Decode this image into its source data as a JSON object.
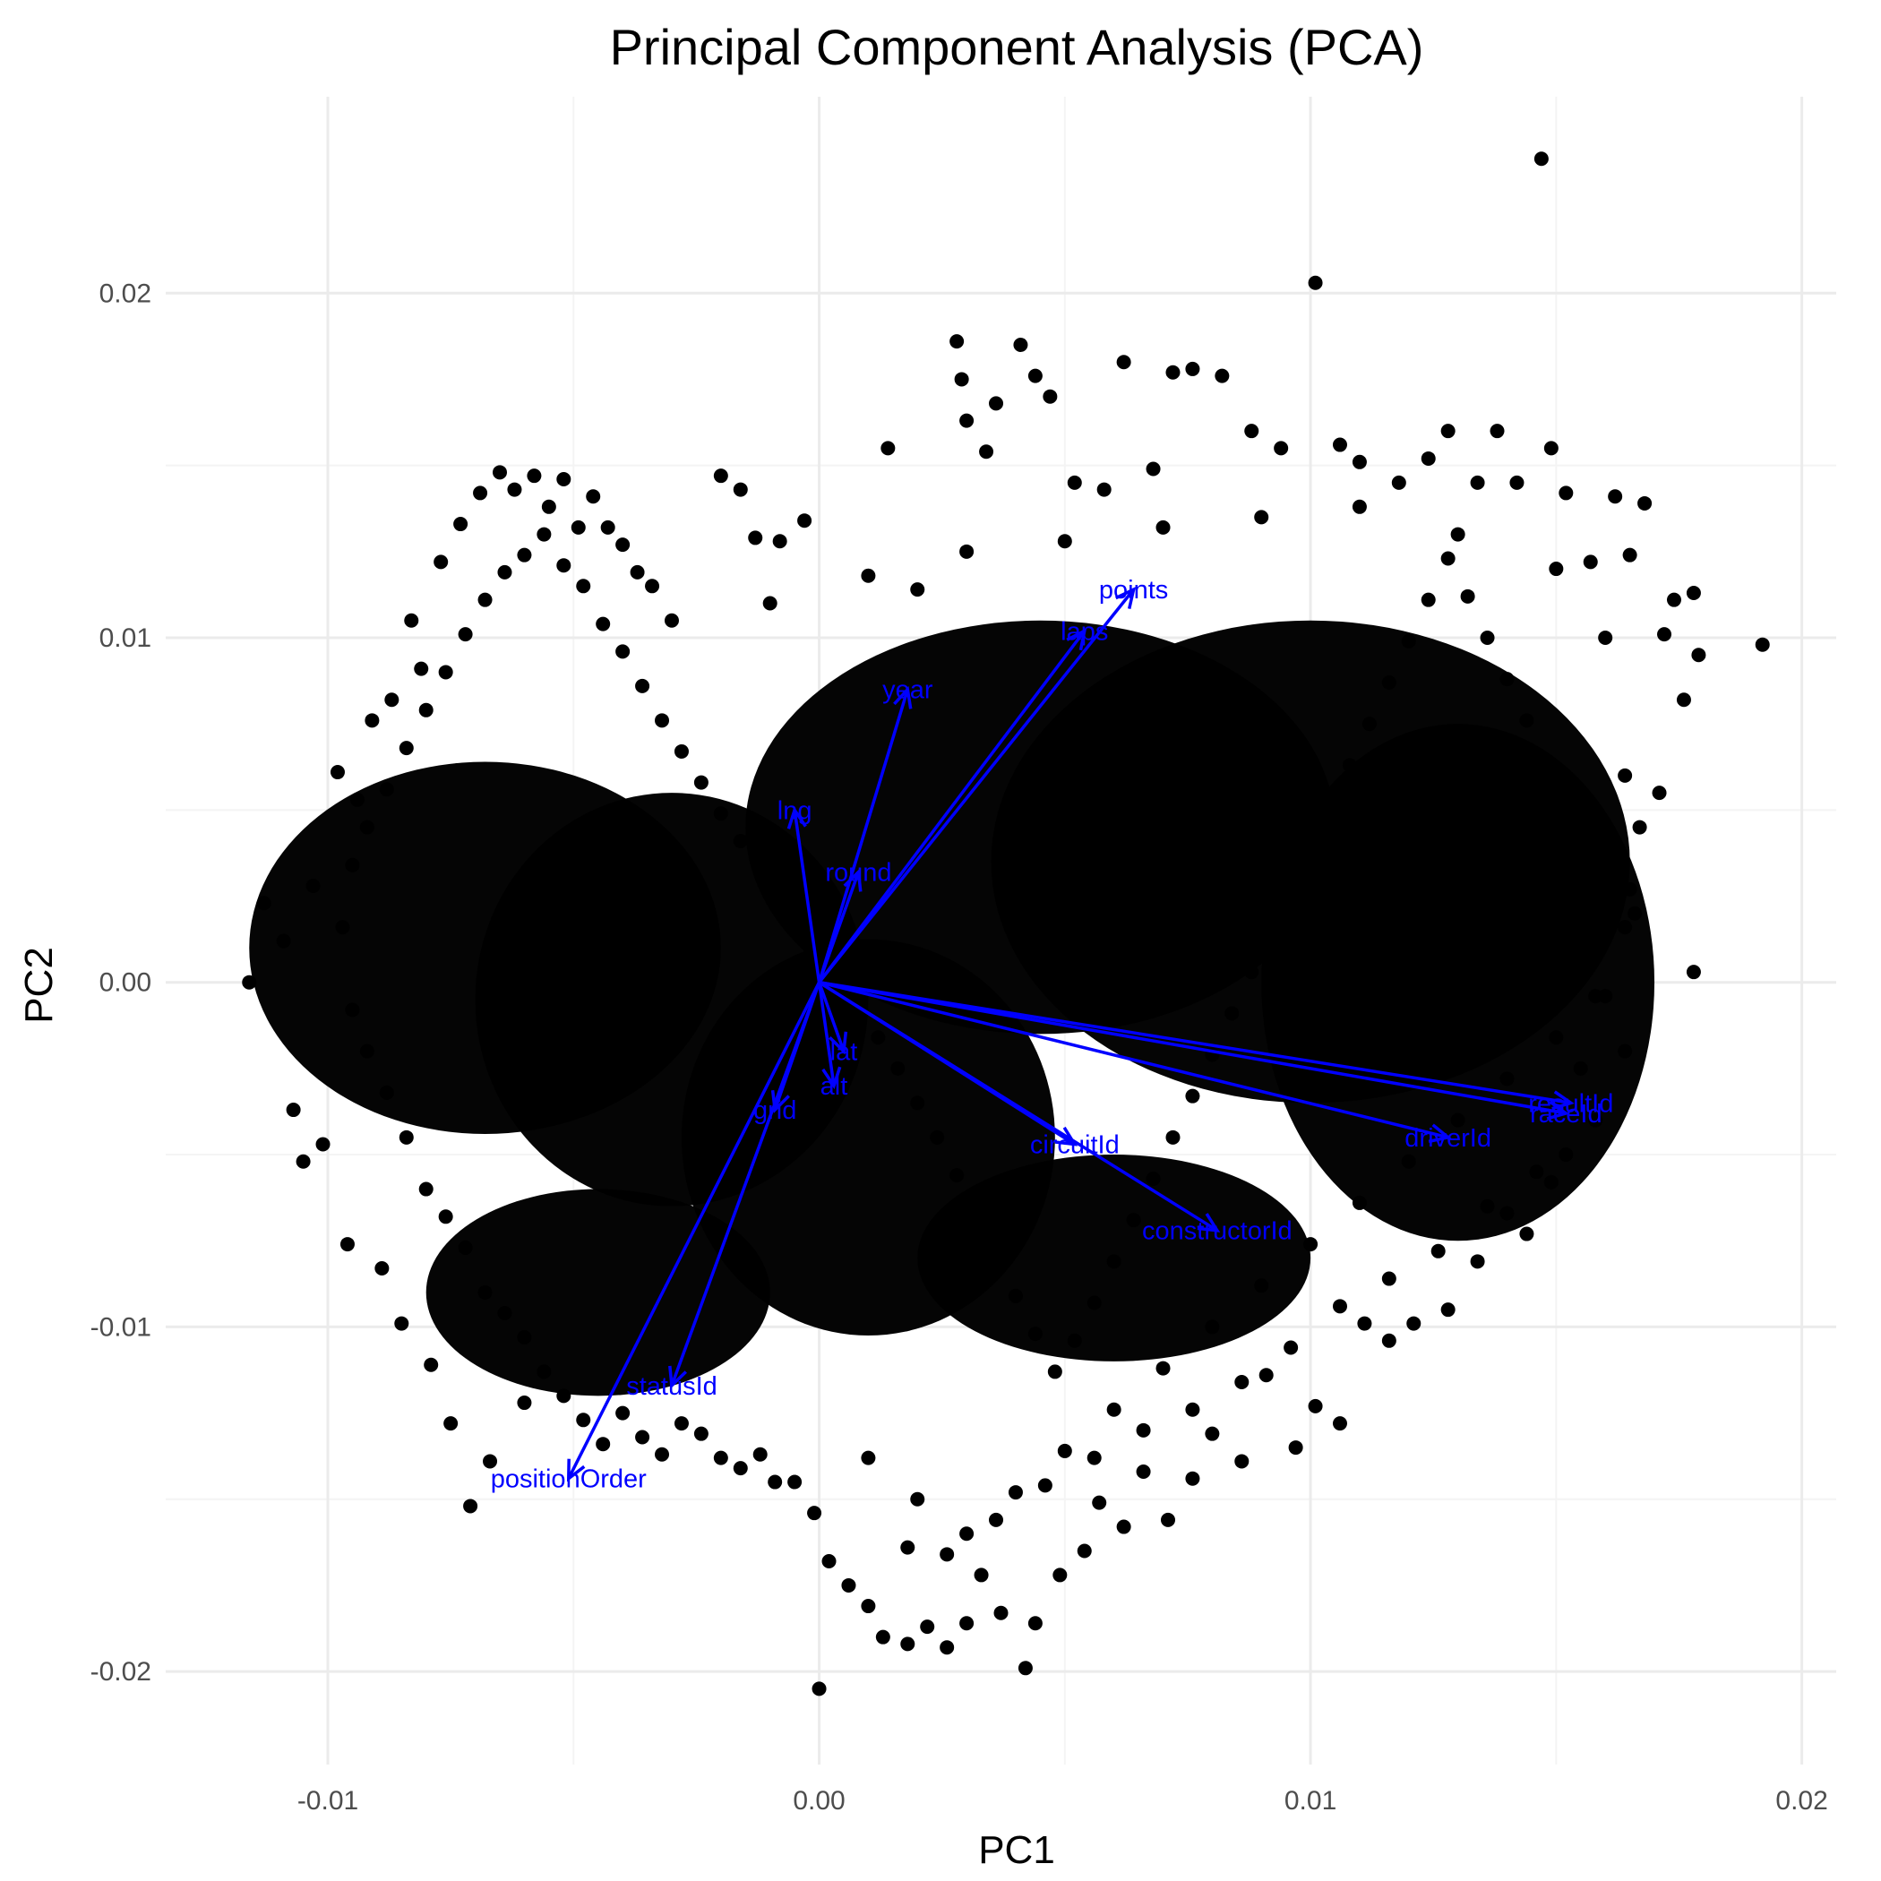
{
  "chart_data": {
    "type": "scatter",
    "title": "Principal Component Analysis (PCA)",
    "xlabel": "PC1",
    "ylabel": "PC2",
    "xlim": [
      -0.0133,
      0.0207
    ],
    "ylim": [
      -0.0227,
      0.0257
    ],
    "x_ticks": [
      {
        "value": -0.01,
        "label": "-0.01"
      },
      {
        "value": 0.0,
        "label": "0.00"
      },
      {
        "value": 0.01,
        "label": "0.01"
      },
      {
        "value": 0.02,
        "label": "0.02"
      }
    ],
    "y_ticks": [
      {
        "value": -0.02,
        "label": "-0.02"
      },
      {
        "value": -0.01,
        "label": "-0.01"
      },
      {
        "value": 0.0,
        "label": "0.00"
      },
      {
        "value": 0.01,
        "label": "0.01"
      },
      {
        "value": 0.02,
        "label": "0.02"
      }
    ],
    "grid": true,
    "point_color": "#000000",
    "arrow_color": "#0000ff",
    "points": [
      [
        -0.0116,
        0.0
      ],
      [
        -0.0113,
        0.0023
      ],
      [
        -0.0109,
        0.0012
      ],
      [
        -0.0107,
        -0.0037
      ],
      [
        -0.0105,
        -0.0052
      ],
      [
        -0.0103,
        0.0028
      ],
      [
        -0.0101,
        -0.0047
      ],
      [
        -0.0098,
        0.0061
      ],
      [
        -0.0096,
        -0.0076
      ],
      [
        -0.0094,
        0.0053
      ],
      [
        -0.0091,
        0.0076
      ],
      [
        -0.0089,
        -0.0083
      ],
      [
        -0.0087,
        0.0082
      ],
      [
        -0.0085,
        -0.0099
      ],
      [
        -0.0083,
        0.0105
      ],
      [
        -0.0081,
        0.0091
      ],
      [
        -0.0079,
        -0.0111
      ],
      [
        -0.0077,
        0.0122
      ],
      [
        -0.0075,
        -0.0128
      ],
      [
        -0.0073,
        0.0133
      ],
      [
        -0.0071,
        -0.0152
      ],
      [
        -0.0069,
        0.0142
      ],
      [
        -0.0067,
        -0.0139
      ],
      [
        -0.0065,
        0.0148
      ],
      [
        -0.0062,
        0.0143
      ],
      [
        -0.006,
        -0.0122
      ],
      [
        -0.0058,
        0.0147
      ],
      [
        -0.0055,
        0.0138
      ],
      [
        -0.0052,
        0.0146
      ],
      [
        -0.0049,
        0.0132
      ],
      [
        -0.0046,
        0.0141
      ],
      [
        -0.0043,
        0.0132
      ],
      [
        -0.004,
        0.0127
      ],
      [
        -0.0037,
        0.0119
      ],
      [
        -0.0034,
        0.0115
      ],
      [
        -0.002,
        0.0147
      ],
      [
        -0.0016,
        0.0143
      ],
      [
        -0.0013,
        0.0129
      ],
      [
        -0.0008,
        0.0128
      ],
      [
        -0.0003,
        0.0134
      ],
      [
        0.0014,
        0.0155
      ],
      [
        0.002,
        0.0114
      ],
      [
        0.0028,
        0.0186
      ],
      [
        0.0029,
        0.0175
      ],
      [
        0.003,
        0.0163
      ],
      [
        0.0034,
        0.0154
      ],
      [
        0.0036,
        0.0168
      ],
      [
        0.0041,
        0.0185
      ],
      [
        0.0044,
        0.0176
      ],
      [
        0.0047,
        0.017
      ],
      [
        0.0052,
        0.0145
      ],
      [
        0.0058,
        0.0143
      ],
      [
        0.0062,
        0.018
      ],
      [
        0.0068,
        0.0149
      ],
      [
        0.0072,
        0.0177
      ],
      [
        0.0076,
        0.0178
      ],
      [
        0.0082,
        0.0176
      ],
      [
        0.0088,
        0.016
      ],
      [
        0.0094,
        0.0155
      ],
      [
        0.0101,
        0.0203
      ],
      [
        0.0106,
        0.0156
      ],
      [
        0.011,
        0.0151
      ],
      [
        0.0118,
        0.0145
      ],
      [
        0.0124,
        0.0152
      ],
      [
        0.0128,
        0.016
      ],
      [
        0.0134,
        0.0145
      ],
      [
        0.0138,
        0.016
      ],
      [
        0.0142,
        0.0145
      ],
      [
        0.0147,
        0.0239
      ],
      [
        0.0149,
        0.0155
      ],
      [
        0.0152,
        0.0142
      ],
      [
        0.0157,
        0.0122
      ],
      [
        0.0162,
        0.0141
      ],
      [
        0.0165,
        0.0124
      ],
      [
        0.0168,
        0.0139
      ],
      [
        0.0172,
        0.0101
      ],
      [
        0.0174,
        0.0111
      ],
      [
        0.0176,
        0.0082
      ],
      [
        0.0178,
        0.0113
      ],
      [
        0.0179,
        0.0095
      ],
      [
        0.0192,
        0.0098
      ],
      [
        0.0178,
        0.0003
      ],
      [
        0.0171,
        0.0055
      ],
      [
        0.0167,
        0.0045
      ],
      [
        0.0165,
        0.0027
      ],
      [
        0.0161,
        0.0016
      ],
      [
        0.0158,
        -0.0004
      ],
      [
        0.0155,
        -0.0025
      ],
      [
        0.0152,
        -0.005
      ],
      [
        0.0149,
        -0.0058
      ],
      [
        0.0144,
        -0.0073
      ],
      [
        0.014,
        -0.0067
      ],
      [
        0.0134,
        -0.0081
      ],
      [
        0.0128,
        -0.0095
      ],
      [
        0.0121,
        -0.0099
      ],
      [
        0.0116,
        -0.0104
      ],
      [
        0.0111,
        -0.0099
      ],
      [
        0.0106,
        -0.0128
      ],
      [
        0.0101,
        -0.0123
      ],
      [
        0.0097,
        -0.0135
      ],
      [
        0.0091,
        -0.0114
      ],
      [
        0.0086,
        -0.0139
      ],
      [
        0.008,
        -0.0131
      ],
      [
        0.0076,
        -0.0144
      ],
      [
        0.0071,
        -0.0156
      ],
      [
        0.0066,
        -0.0142
      ],
      [
        0.0062,
        -0.0158
      ],
      [
        0.0057,
        -0.0151
      ],
      [
        0.0054,
        -0.0165
      ],
      [
        0.0049,
        -0.0172
      ],
      [
        0.0044,
        -0.0186
      ],
      [
        0.0042,
        -0.0199
      ],
      [
        0.0037,
        -0.0183
      ],
      [
        0.0033,
        -0.0172
      ],
      [
        0.003,
        -0.0186
      ],
      [
        0.0026,
        -0.0193
      ],
      [
        0.0022,
        -0.0187
      ],
      [
        0.0018,
        -0.0192
      ],
      [
        0.0013,
        -0.019
      ],
      [
        0.001,
        -0.0181
      ],
      [
        0.0006,
        -0.0175
      ],
      [
        0.0002,
        -0.0168
      ],
      [
        -0.0001,
        -0.0154
      ],
      [
        -0.0005,
        -0.0145
      ],
      [
        -0.0009,
        -0.0145
      ],
      [
        -0.0012,
        -0.0137
      ],
      [
        -0.0016,
        -0.0141
      ],
      [
        -0.002,
        -0.0138
      ],
      [
        -0.0024,
        -0.0131
      ],
      [
        -0.0028,
        -0.0128
      ],
      [
        -0.0032,
        -0.0137
      ],
      [
        -0.0036,
        -0.0132
      ],
      [
        -0.004,
        -0.0125
      ],
      [
        -0.0044,
        -0.0134
      ],
      [
        -0.0048,
        -0.0127
      ],
      [
        -0.0052,
        -0.012
      ],
      [
        -0.0056,
        -0.0113
      ],
      [
        -0.006,
        -0.0103
      ],
      [
        -0.0064,
        -0.0096
      ],
      [
        -0.0068,
        -0.009
      ],
      [
        -0.0072,
        -0.0077
      ],
      [
        -0.0076,
        -0.0068
      ],
      [
        -0.008,
        -0.006
      ],
      [
        -0.0084,
        -0.0045
      ],
      [
        -0.0088,
        -0.0032
      ],
      [
        -0.0092,
        -0.002
      ],
      [
        -0.0095,
        -0.0008
      ],
      [
        -0.0097,
        0.0016
      ],
      [
        -0.0095,
        0.0034
      ],
      [
        -0.0092,
        0.0045
      ],
      [
        -0.0088,
        0.0056
      ],
      [
        -0.0084,
        0.0068
      ],
      [
        -0.008,
        0.0079
      ],
      [
        -0.0076,
        0.009
      ],
      [
        -0.0072,
        0.0101
      ],
      [
        -0.0068,
        0.0111
      ],
      [
        -0.0064,
        0.0119
      ],
      [
        -0.006,
        0.0124
      ],
      [
        -0.0056,
        0.013
      ],
      [
        -0.0052,
        0.0121
      ],
      [
        -0.0048,
        0.0115
      ],
      [
        -0.0044,
        0.0104
      ],
      [
        -0.004,
        0.0096
      ],
      [
        -0.0036,
        0.0086
      ],
      [
        -0.0032,
        0.0076
      ],
      [
        -0.0028,
        0.0067
      ],
      [
        -0.0024,
        0.0058
      ],
      [
        -0.002,
        0.0049
      ],
      [
        -0.0016,
        0.0041
      ],
      [
        -0.0012,
        0.0033
      ],
      [
        -0.0008,
        0.0025
      ],
      [
        -0.0004,
        0.0017
      ],
      [
        0.0,
        0.0009
      ],
      [
        0.0004,
        0.0001
      ],
      [
        0.0008,
        -0.0007
      ],
      [
        0.0012,
        -0.0016
      ],
      [
        0.0016,
        -0.0025
      ],
      [
        0.002,
        -0.0035
      ],
      [
        0.0024,
        -0.0045
      ],
      [
        0.0028,
        -0.0056
      ],
      [
        0.0032,
        -0.0067
      ],
      [
        0.0036,
        -0.0079
      ],
      [
        0.004,
        -0.0091
      ],
      [
        0.0044,
        -0.0102
      ],
      [
        0.0048,
        -0.0113
      ],
      [
        0.0052,
        -0.0104
      ],
      [
        0.0056,
        -0.0093
      ],
      [
        0.006,
        -0.0081
      ],
      [
        0.0064,
        -0.0069
      ],
      [
        0.0068,
        -0.0057
      ],
      [
        0.0072,
        -0.0045
      ],
      [
        0.0076,
        -0.0033
      ],
      [
        0.008,
        -0.0021
      ],
      [
        0.0084,
        -0.0009
      ],
      [
        0.0088,
        0.0003
      ],
      [
        0.0092,
        0.0015
      ],
      [
        0.0096,
        0.0027
      ],
      [
        0.01,
        0.0039
      ],
      [
        0.0104,
        0.0051
      ],
      [
        0.0108,
        0.0063
      ],
      [
        0.0112,
        0.0075
      ],
      [
        0.0116,
        0.0087
      ],
      [
        0.012,
        0.0099
      ],
      [
        0.0124,
        0.0111
      ],
      [
        0.0128,
        0.0123
      ],
      [
        0.0132,
        0.0112
      ],
      [
        0.0136,
        0.01
      ],
      [
        0.014,
        0.0088
      ],
      [
        0.0144,
        0.0076
      ],
      [
        0.0148,
        0.0064
      ],
      [
        0.0152,
        0.0052
      ],
      [
        0.0156,
        0.004
      ],
      [
        0.016,
        0.0028
      ],
      [
        0.0164,
        0.0016
      ],
      [
        0.016,
        -0.0004
      ],
      [
        0.015,
        -0.0016
      ],
      [
        0.014,
        -0.0028
      ],
      [
        0.013,
        -0.004
      ],
      [
        0.012,
        -0.0052
      ],
      [
        0.011,
        -0.0064
      ],
      [
        0.01,
        -0.0076
      ],
      [
        0.009,
        -0.0088
      ],
      [
        0.008,
        -0.01
      ],
      [
        0.007,
        -0.0112
      ],
      [
        0.006,
        -0.0124
      ],
      [
        0.005,
        -0.0136
      ],
      [
        0.004,
        -0.0148
      ],
      [
        0.003,
        -0.016
      ],
      [
        0.002,
        -0.015
      ],
      [
        0.001,
        -0.0138
      ],
      [
        0.0,
        -0.0205
      ],
      [
        0.0018,
        -0.0164
      ],
      [
        -0.003,
        0.0105
      ],
      [
        -0.001,
        0.011
      ],
      [
        0.001,
        0.0118
      ],
      [
        0.003,
        0.0125
      ],
      [
        0.005,
        0.0128
      ],
      [
        0.007,
        0.0132
      ],
      [
        0.009,
        0.0135
      ],
      [
        0.011,
        0.0138
      ],
      [
        0.013,
        0.013
      ],
      [
        0.015,
        0.012
      ],
      [
        0.016,
        0.01
      ],
      [
        0.0164,
        0.006
      ],
      [
        0.0166,
        0.002
      ],
      [
        0.0164,
        -0.002
      ],
      [
        0.0158,
        -0.004
      ],
      [
        0.0146,
        -0.0055
      ],
      [
        0.0136,
        -0.0065
      ],
      [
        0.0126,
        -0.0078
      ],
      [
        0.0116,
        -0.0086
      ],
      [
        0.0106,
        -0.0094
      ],
      [
        0.0096,
        -0.0106
      ],
      [
        0.0086,
        -0.0116
      ],
      [
        0.0076,
        -0.0124
      ],
      [
        0.0066,
        -0.013
      ],
      [
        0.0056,
        -0.0138
      ],
      [
        0.0046,
        -0.0146
      ],
      [
        0.0036,
        -0.0156
      ],
      [
        0.0026,
        -0.0166
      ]
    ],
    "loadings": [
      {
        "label": "points",
        "x": 0.0064,
        "y": 0.0114
      },
      {
        "label": "laps",
        "x": 0.0054,
        "y": 0.0102
      },
      {
        "label": "year",
        "x": 0.0018,
        "y": 0.0085
      },
      {
        "label": "lng",
        "x": -0.0005,
        "y": 0.005
      },
      {
        "label": "round",
        "x": 0.0008,
        "y": 0.0032
      },
      {
        "label": "lat",
        "x": 0.0005,
        "y": -0.002
      },
      {
        "label": "alt",
        "x": 0.0003,
        "y": -0.003
      },
      {
        "label": "grid",
        "x": -0.0009,
        "y": -0.0037
      },
      {
        "label": "statusId",
        "x": -0.003,
        "y": -0.0117
      },
      {
        "label": "positionOrder",
        "x": -0.0051,
        "y": -0.0144
      },
      {
        "label": "circuitId",
        "x": 0.0052,
        "y": -0.0047
      },
      {
        "label": "constructorId",
        "x": 0.0081,
        "y": -0.0072
      },
      {
        "label": "driverId",
        "x": 0.0128,
        "y": -0.0045
      },
      {
        "label": "resultId",
        "x": 0.0153,
        "y": -0.0035
      },
      {
        "label": "raceId",
        "x": 0.0152,
        "y": -0.0038
      }
    ]
  }
}
